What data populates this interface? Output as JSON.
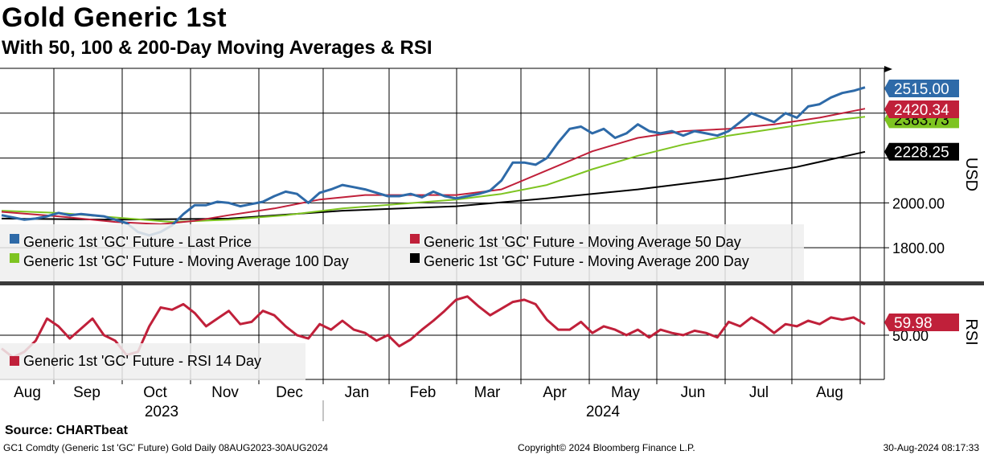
{
  "header": {
    "title": "Gold Generic 1st",
    "subtitle": "With 50, 100 & 200-Day Moving Averages & RSI"
  },
  "footer": {
    "source": "Source: CHARTbeat",
    "left": "GC1 Comdty (Generic 1st 'GC' Future) Gold  Daily 08AUG2023-30AUG2024",
    "center": "Copyright© 2024 Bloomberg Finance L.P.",
    "right": "30-Aug-2024 08:17:33"
  },
  "colors": {
    "price": "#2e6aa8",
    "ma50": "#c0203a",
    "ma100": "#7ec421",
    "ma200": "#000000",
    "rsi": "#c0203a",
    "grid": "#000000",
    "legend_bg": "#eeeeee"
  },
  "chart_data": [
    {
      "type": "line",
      "panel": "price",
      "ylabel": "USD",
      "ylim": [
        1650,
        2600
      ],
      "yticks": [
        1800,
        2000,
        2200,
        2400
      ],
      "ytick_labels": [
        "1800.00",
        "2000.00",
        "",
        ""
      ],
      "x_months": [
        "Aug",
        "Sep",
        "Oct",
        "Nov",
        "Dec",
        "Jan",
        "Feb",
        "Mar",
        "Apr",
        "May",
        "Jun",
        "Jul",
        "Aug"
      ],
      "x_years": [
        "2023",
        "2024"
      ],
      "series": [
        {
          "name": "Generic 1st 'GC' Future - Last Price",
          "key": "price",
          "last_value": "2515.00",
          "points": [
            [
              0,
              1945
            ],
            [
              2,
              1935
            ],
            [
              4,
              1925
            ],
            [
              6,
              1930
            ],
            [
              8,
              1940
            ],
            [
              10,
              1955
            ],
            [
              12,
              1945
            ],
            [
              14,
              1950
            ],
            [
              16,
              1945
            ],
            [
              18,
              1940
            ],
            [
              20,
              1925
            ],
            [
              22,
              1910
            ],
            [
              24,
              1870
            ],
            [
              26,
              1855
            ],
            [
              28,
              1870
            ],
            [
              30,
              1900
            ],
            [
              32,
              1950
            ],
            [
              34,
              1990
            ],
            [
              36,
              1990
            ],
            [
              38,
              2005
            ],
            [
              40,
              2000
            ],
            [
              42,
              1985
            ],
            [
              44,
              1995
            ],
            [
              46,
              2005
            ],
            [
              48,
              2030
            ],
            [
              50,
              2050
            ],
            [
              52,
              2040
            ],
            [
              54,
              2000
            ],
            [
              56,
              2045
            ],
            [
              58,
              2060
            ],
            [
              60,
              2080
            ],
            [
              62,
              2070
            ],
            [
              64,
              2060
            ],
            [
              66,
              2045
            ],
            [
              68,
              2030
            ],
            [
              70,
              2030
            ],
            [
              72,
              2040
            ],
            [
              74,
              2025
            ],
            [
              76,
              2050
            ],
            [
              78,
              2030
            ],
            [
              80,
              2020
            ],
            [
              82,
              2030
            ],
            [
              84,
              2040
            ],
            [
              86,
              2055
            ],
            [
              88,
              2100
            ],
            [
              90,
              2180
            ],
            [
              92,
              2180
            ],
            [
              94,
              2170
            ],
            [
              96,
              2200
            ],
            [
              98,
              2270
            ],
            [
              100,
              2330
            ],
            [
              102,
              2340
            ],
            [
              104,
              2310
            ],
            [
              106,
              2330
            ],
            [
              108,
              2290
            ],
            [
              110,
              2310
            ],
            [
              112,
              2350
            ],
            [
              114,
              2320
            ],
            [
              116,
              2310
            ],
            [
              118,
              2320
            ],
            [
              120,
              2300
            ],
            [
              122,
              2320
            ],
            [
              124,
              2310
            ],
            [
              126,
              2300
            ],
            [
              128,
              2320
            ],
            [
              130,
              2360
            ],
            [
              132,
              2400
            ],
            [
              134,
              2380
            ],
            [
              136,
              2360
            ],
            [
              138,
              2400
            ],
            [
              140,
              2380
            ],
            [
              142,
              2430
            ],
            [
              144,
              2440
            ],
            [
              146,
              2470
            ],
            [
              148,
              2490
            ],
            [
              150,
              2500
            ],
            [
              152,
              2515
            ]
          ]
        },
        {
          "name": "Generic 1st 'GC' Future - Moving Average 50 Day",
          "key": "ma50",
          "last_value": "2420.34",
          "points": [
            [
              0,
              1960
            ],
            [
              10,
              1940
            ],
            [
              20,
              1915
            ],
            [
              28,
              1905
            ],
            [
              34,
              1920
            ],
            [
              40,
              1945
            ],
            [
              48,
              1975
            ],
            [
              56,
              2015
            ],
            [
              64,
              2035
            ],
            [
              72,
              2035
            ],
            [
              80,
              2035
            ],
            [
              88,
              2060
            ],
            [
              96,
              2145
            ],
            [
              104,
              2230
            ],
            [
              112,
              2290
            ],
            [
              120,
              2320
            ],
            [
              128,
              2330
            ],
            [
              136,
              2350
            ],
            [
              144,
              2380
            ],
            [
              152,
              2420
            ]
          ]
        },
        {
          "name": "Generic 1st 'GC' Future - Moving Average 100 Day",
          "key": "ma100",
          "last_value": "2383.73",
          "points": [
            [
              0,
              1965
            ],
            [
              10,
              1955
            ],
            [
              20,
              1935
            ],
            [
              30,
              1915
            ],
            [
              40,
              1925
            ],
            [
              50,
              1945
            ],
            [
              60,
              1975
            ],
            [
              70,
              1995
            ],
            [
              80,
              2015
            ],
            [
              88,
              2040
            ],
            [
              96,
              2080
            ],
            [
              104,
              2150
            ],
            [
              112,
              2210
            ],
            [
              120,
              2260
            ],
            [
              128,
              2300
            ],
            [
              136,
              2330
            ],
            [
              144,
              2360
            ],
            [
              152,
              2384
            ]
          ]
        },
        {
          "name": "Generic 1st 'GC' Future - Moving Average 200 Day",
          "key": "ma200",
          "last_value": "2228.25",
          "points": [
            [
              0,
              1930
            ],
            [
              20,
              1925
            ],
            [
              40,
              1930
            ],
            [
              60,
              1965
            ],
            [
              80,
              1985
            ],
            [
              96,
              2020
            ],
            [
              112,
              2060
            ],
            [
              128,
              2110
            ],
            [
              140,
              2160
            ],
            [
              152,
              2228
            ]
          ]
        }
      ]
    },
    {
      "type": "line",
      "panel": "rsi",
      "ylabel": "RSI",
      "ylim": [
        10,
        95
      ],
      "yticks": [
        50
      ],
      "ytick_labels": [
        "50.00"
      ],
      "series": [
        {
          "name": "Generic 1st 'GC' Future - RSI 14 Day",
          "key": "rsi",
          "last_value": "59.98",
          "points": [
            [
              0,
              38
            ],
            [
              2,
              30
            ],
            [
              4,
              35
            ],
            [
              6,
              45
            ],
            [
              8,
              65
            ],
            [
              10,
              58
            ],
            [
              12,
              47
            ],
            [
              14,
              56
            ],
            [
              16,
              65
            ],
            [
              18,
              50
            ],
            [
              20,
              45
            ],
            [
              22,
              32
            ],
            [
              24,
              35
            ],
            [
              26,
              58
            ],
            [
              28,
              75
            ],
            [
              30,
              73
            ],
            [
              32,
              78
            ],
            [
              34,
              70
            ],
            [
              36,
              58
            ],
            [
              38,
              65
            ],
            [
              40,
              72
            ],
            [
              42,
              60
            ],
            [
              44,
              62
            ],
            [
              46,
              72
            ],
            [
              48,
              68
            ],
            [
              50,
              58
            ],
            [
              52,
              50
            ],
            [
              54,
              47
            ],
            [
              56,
              60
            ],
            [
              58,
              55
            ],
            [
              60,
              63
            ],
            [
              62,
              55
            ],
            [
              64,
              52
            ],
            [
              66,
              45
            ],
            [
              68,
              50
            ],
            [
              70,
              40
            ],
            [
              72,
              46
            ],
            [
              74,
              55
            ],
            [
              76,
              63
            ],
            [
              78,
              72
            ],
            [
              80,
              82
            ],
            [
              82,
              85
            ],
            [
              84,
              76
            ],
            [
              86,
              68
            ],
            [
              88,
              74
            ],
            [
              90,
              80
            ],
            [
              92,
              82
            ],
            [
              94,
              78
            ],
            [
              96,
              64
            ],
            [
              98,
              55
            ],
            [
              100,
              55
            ],
            [
              102,
              62
            ],
            [
              104,
              52
            ],
            [
              106,
              58
            ],
            [
              108,
              55
            ],
            [
              110,
              50
            ],
            [
              112,
              55
            ],
            [
              114,
              48
            ],
            [
              116,
              55
            ],
            [
              118,
              52
            ],
            [
              120,
              50
            ],
            [
              122,
              54
            ],
            [
              124,
              52
            ],
            [
              126,
              48
            ],
            [
              128,
              62
            ],
            [
              130,
              58
            ],
            [
              132,
              66
            ],
            [
              134,
              60
            ],
            [
              136,
              52
            ],
            [
              138,
              60
            ],
            [
              140,
              58
            ],
            [
              142,
              63
            ],
            [
              144,
              60
            ],
            [
              146,
              66
            ],
            [
              148,
              64
            ],
            [
              150,
              66
            ],
            [
              152,
              59.98
            ]
          ]
        }
      ]
    }
  ]
}
